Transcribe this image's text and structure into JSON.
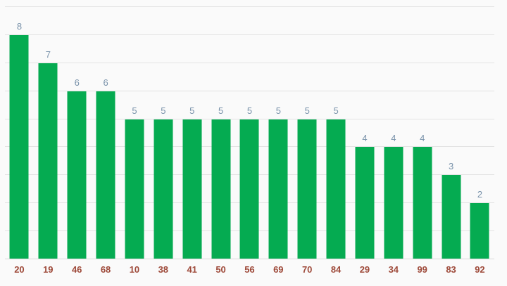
{
  "chart_data": {
    "type": "bar",
    "categories": [
      "20",
      "19",
      "46",
      "68",
      "10",
      "38",
      "41",
      "50",
      "56",
      "69",
      "70",
      "84",
      "29",
      "34",
      "99",
      "83",
      "92"
    ],
    "values": [
      8,
      7,
      6,
      6,
      5,
      5,
      5,
      5,
      5,
      5,
      5,
      5,
      4,
      4,
      4,
      3,
      2
    ],
    "title": "",
    "xlabel": "",
    "ylabel": "",
    "ylim": [
      0,
      9
    ],
    "grid": true,
    "gridline_step": 1,
    "legend": "none",
    "value_labels_shown": true,
    "y_axis_tick_labels_shown": false,
    "colors": {
      "bar": "#05ab51",
      "background": "#fafafa",
      "gridline": "#e3e3e3",
      "baseline": "#d9d9d9",
      "value_label": "#7a93ab",
      "x_axis_label": "#9e4a3a"
    }
  }
}
